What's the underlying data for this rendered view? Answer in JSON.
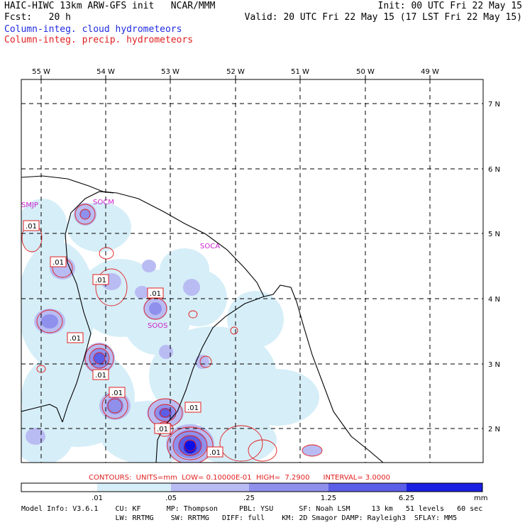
{
  "header": {
    "left_line1": "HAIC-HIWC 13km ARW-GFS init   NCAR/MMM",
    "left_line2": "Fcst:   20 h",
    "right_line1": "Init: 00 UTC Fri 22 May 15",
    "right_line2": "Valid: 20 UTC Fri 22 May 15 (17 LST Fri 22 May 15)",
    "field1": "Column-integ. cloud hydrometeors",
    "field2": "Column-integ. precip. hydrometeors"
  },
  "map": {
    "lon_labels": [
      "55 W",
      "54 W",
      "53 W",
      "52 W",
      "51 W",
      "50 W",
      "49 W"
    ],
    "lat_labels": [
      "7 N",
      "6 N",
      "5 N",
      "4 N",
      "3 N",
      "2 N"
    ],
    "stations": [
      "SMJP",
      "SOCM",
      "SOCA",
      "SOOS"
    ],
    "contour_label": ".01",
    "colors": {
      "cloud_levels": [
        "#ffffff",
        "#d6eef8",
        "#b9bcf2",
        "#8e90ec",
        "#5b5ee6",
        "#2a2ee0",
        "#0b10e6"
      ],
      "precip_contour": "#e02020",
      "station": "#cc22cc",
      "boundary": "#000000"
    }
  },
  "contours": {
    "text": "CONTOURS:  UNITS=mm  LOW= 0.10000E-01  HIGH=  7.2900      INTERVAL= 3.0000"
  },
  "colorbar": {
    "ticks": [
      ".01",
      ".05",
      ".25",
      "1.25",
      "6.25"
    ],
    "unit": "mm"
  },
  "footer": {
    "line1": "Model Info: V3.6.1    CU: KF      MP: Thompson     PBL: YSU      SF: Noah LSM     13 km   51 levels   60 sec",
    "line2": "                      LW: RRTMG    SW: RRTMG   DIFF: full    KM: 2D Smagor DAMP: Rayleigh3  SFLAY: MM5"
  }
}
